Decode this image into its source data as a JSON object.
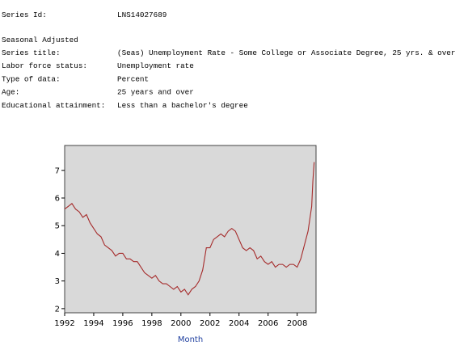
{
  "series_info": {
    "series_id_label": "Series Id:",
    "series_id": "LNS14027689",
    "seasonal": "Seasonal Adjusted",
    "rows": [
      [
        "Series title:",
        "(Seas) Unemployment Rate - Some College or Associate Degree, 25 yrs. & over"
      ],
      [
        "Labor force status:",
        "Unemployment rate"
      ],
      [
        "Type of data:",
        "Percent"
      ],
      [
        "Age:",
        "25 years and over"
      ],
      [
        "Educational attainment:",
        "Less than a bachelor's degree"
      ]
    ]
  },
  "chart_data": {
    "type": "line",
    "x_label": "Month",
    "x": [
      1992,
      1992.25,
      1992.5,
      1992.75,
      1993,
      1993.25,
      1993.5,
      1993.75,
      1994,
      1994.25,
      1994.5,
      1994.75,
      1995,
      1995.25,
      1995.5,
      1995.75,
      1996,
      1996.25,
      1996.5,
      1996.75,
      1997,
      1997.25,
      1997.5,
      1997.75,
      1998,
      1998.25,
      1998.5,
      1998.75,
      1999,
      1999.25,
      1999.5,
      1999.75,
      2000,
      2000.25,
      2000.5,
      2000.75,
      2001,
      2001.25,
      2001.5,
      2001.75,
      2002,
      2002.25,
      2002.5,
      2002.75,
      2003,
      2003.25,
      2003.5,
      2003.75,
      2004,
      2004.25,
      2004.5,
      2004.75,
      2005,
      2005.25,
      2005.5,
      2005.75,
      2006,
      2006.25,
      2006.5,
      2006.75,
      2007,
      2007.25,
      2007.5,
      2007.75,
      2008,
      2008.25,
      2008.5,
      2008.75,
      2009,
      2009.08,
      2009.17
    ],
    "series": [
      {
        "name": "Unemployment rate",
        "color": "#a52a2a",
        "values": [
          5.6,
          5.7,
          5.8,
          5.6,
          5.5,
          5.3,
          5.4,
          5.1,
          4.9,
          4.7,
          4.6,
          4.3,
          4.2,
          4.1,
          3.9,
          4.0,
          4.0,
          3.8,
          3.8,
          3.7,
          3.7,
          3.5,
          3.3,
          3.2,
          3.1,
          3.2,
          3.0,
          2.9,
          2.9,
          2.8,
          2.7,
          2.8,
          2.6,
          2.7,
          2.5,
          2.7,
          2.8,
          3.0,
          3.4,
          4.2,
          4.2,
          4.5,
          4.6,
          4.7,
          4.6,
          4.8,
          4.9,
          4.8,
          4.5,
          4.2,
          4.1,
          4.2,
          4.1,
          3.8,
          3.9,
          3.7,
          3.6,
          3.7,
          3.5,
          3.6,
          3.6,
          3.5,
          3.6,
          3.6,
          3.5,
          3.8,
          4.3,
          4.8,
          5.7,
          6.6,
          7.3
        ]
      }
    ],
    "xlim": [
      1992,
      2009.3
    ],
    "ylim": [
      1.85,
      7.9
    ],
    "xticks": [
      1992,
      1994,
      1996,
      1998,
      2000,
      2002,
      2004,
      2006,
      2008
    ],
    "yticks": [
      2,
      3,
      4,
      5,
      6,
      7
    ],
    "background": "#d9d9d9"
  }
}
